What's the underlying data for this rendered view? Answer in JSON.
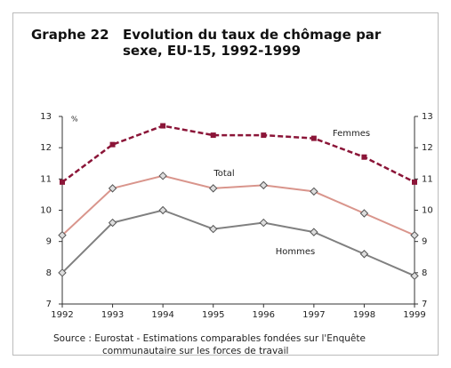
{
  "chart_data": {
    "type": "line",
    "figure_label": "Graphe 22",
    "title": "Evolution du taux de chômage par sexe, EU-15, 1992-1999",
    "y_unit": "%",
    "categories": [
      "1992",
      "1993",
      "1994",
      "1995",
      "1996",
      "1997",
      "1998",
      "1999"
    ],
    "series": [
      {
        "name": "Femmes",
        "color": "#8b1538",
        "dashed": true,
        "marker": "square",
        "values": [
          10.9,
          12.1,
          12.7,
          12.4,
          12.4,
          12.3,
          11.7,
          10.9
        ]
      },
      {
        "name": "Total",
        "color": "#d9958c",
        "dashed": false,
        "marker": "diamond",
        "values": [
          9.2,
          10.7,
          11.1,
          10.7,
          10.8,
          10.6,
          9.9,
          9.2
        ]
      },
      {
        "name": "Hommes",
        "color": "#808080",
        "dashed": false,
        "marker": "diamond",
        "values": [
          8.0,
          9.6,
          10.0,
          9.4,
          9.6,
          9.3,
          8.6,
          7.9
        ]
      }
    ],
    "ylim": [
      7,
      13
    ],
    "yticks": [
      7,
      8,
      9,
      10,
      11,
      12,
      13
    ],
    "y2lim": [
      7,
      13
    ],
    "y2ticks": [
      7,
      8,
      9,
      10,
      11,
      12,
      13
    ],
    "source": "Source : Eurostat - Estimations comparables fondées sur l'Enquête communautaire sur les forces de travail"
  }
}
